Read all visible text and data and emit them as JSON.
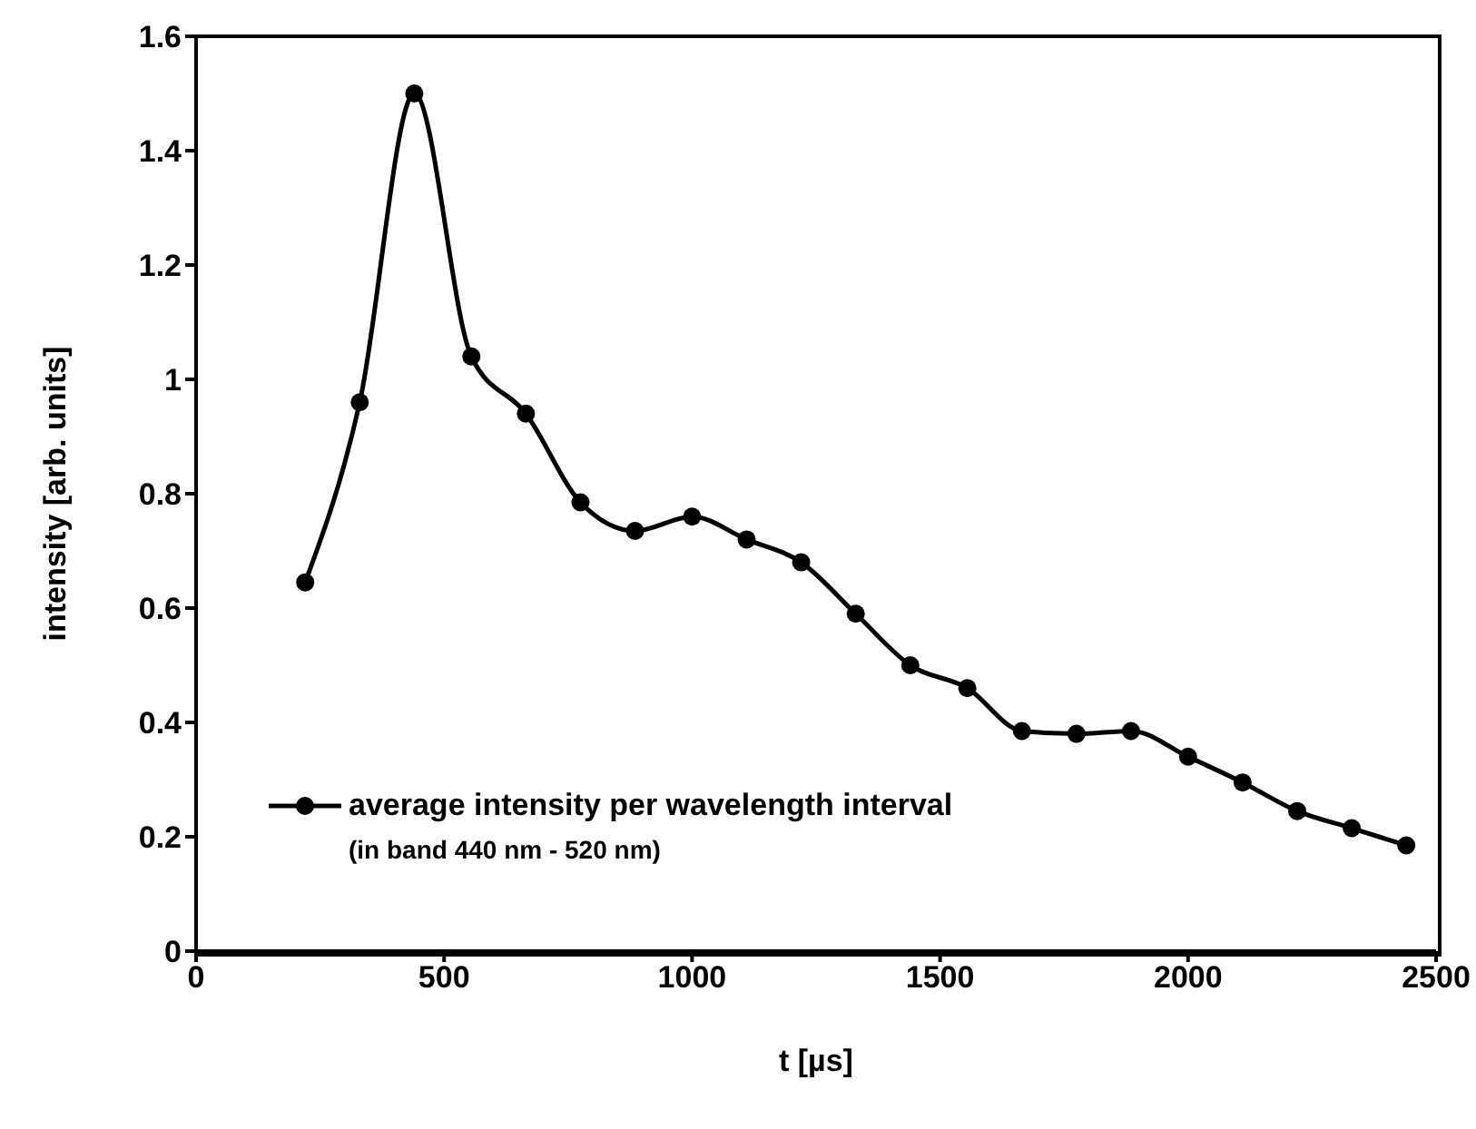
{
  "chart_data": {
    "type": "line",
    "xlabel": "t [µs]",
    "ylabel": "intensity [arb. units]",
    "x": [
      220,
      330,
      440,
      555,
      665,
      775,
      885,
      1000,
      1110,
      1220,
      1330,
      1440,
      1555,
      1665,
      1775,
      1885,
      2000,
      2110,
      2220,
      2330,
      2440
    ],
    "series": [
      {
        "name": "average intensity per wavelength interval",
        "color": "#000000",
        "values": [
          0.645,
          0.96,
          1.5,
          1.04,
          0.94,
          0.785,
          0.735,
          0.76,
          0.72,
          0.68,
          0.59,
          0.5,
          0.46,
          0.385,
          0.38,
          0.385,
          0.34,
          0.295,
          0.245,
          0.215,
          0.185
        ]
      }
    ],
    "annotations": [
      "(in band 440 nm - 520 nm)"
    ],
    "xlim": [
      0,
      2500
    ],
    "xticks": [
      0,
      500,
      1000,
      1500,
      2000,
      2500
    ],
    "ylim": [
      0,
      1.6
    ],
    "yticks": [
      0,
      0.2,
      0.4,
      0.6,
      0.8,
      1,
      1.2,
      1.4,
      1.6
    ],
    "grid": false,
    "legend": "bottom left",
    "marker": "circle",
    "line_style": "solid"
  }
}
